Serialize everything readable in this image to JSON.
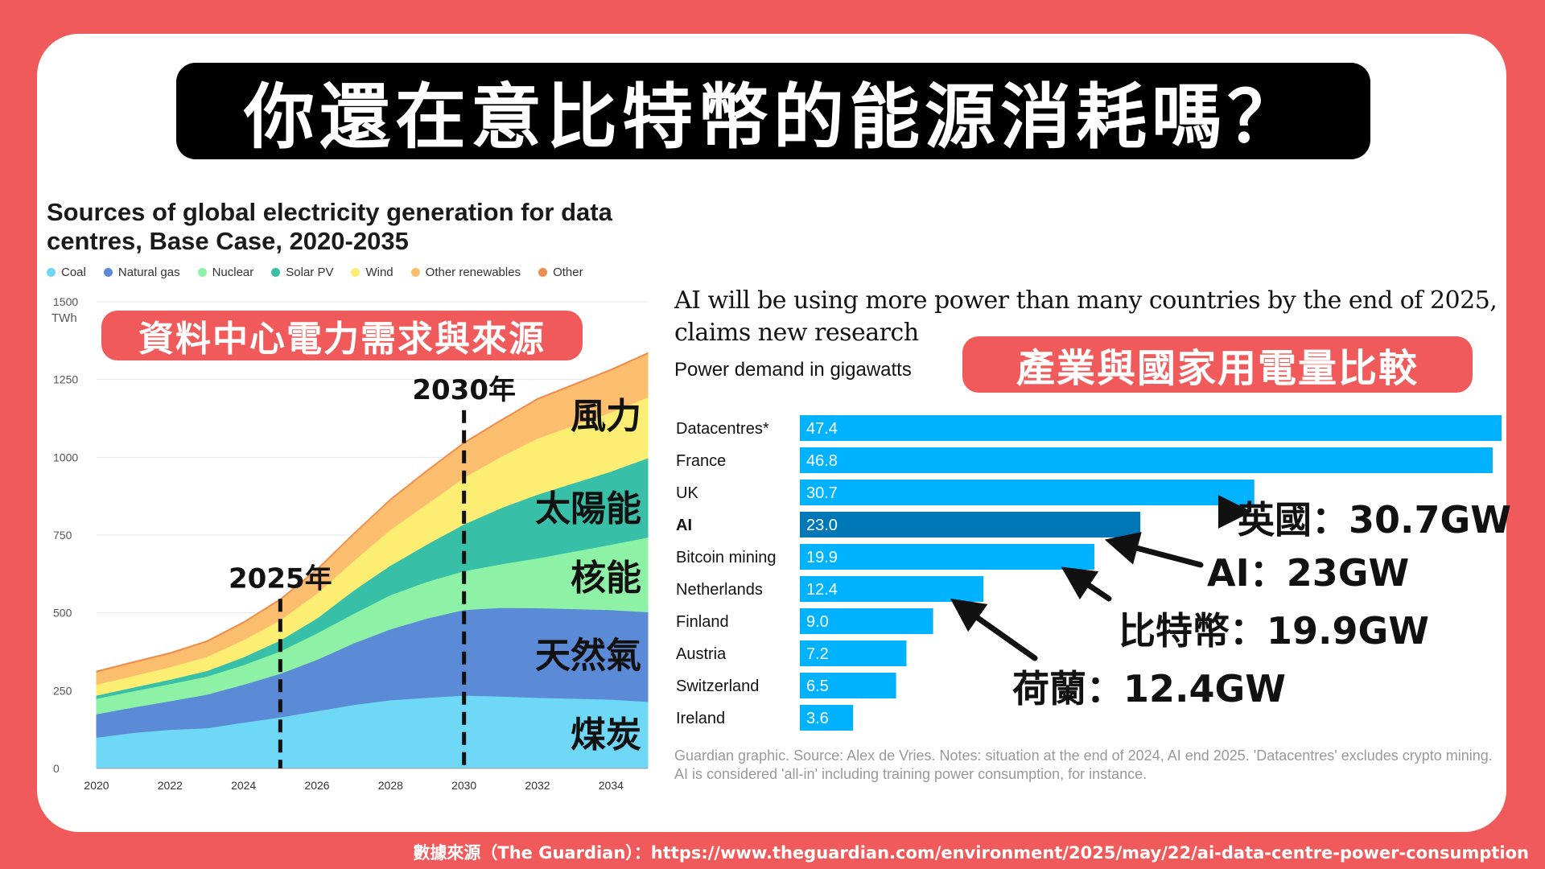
{
  "main_title": "你還在意比特幣的能源消耗嗎？",
  "footer_source": "數據來源（The Guardian）：https://www.theguardian.com/environment/2025/may/22/ai-data-centre-power-consumption",
  "left_pill": "資料中心電力需求與來源",
  "right_pill": "產業與國家用電量比較",
  "chart_data": [
    {
      "type": "area",
      "title": "Sources of global electricity generation for data centres, Base Case, 2020-2035",
      "ylabel": "TWh",
      "ylim": [
        0,
        1500
      ],
      "yticks": [
        "1500",
        "1250",
        "1000",
        "750",
        "500",
        "250",
        "0"
      ],
      "xticks": [
        "2020",
        "2022",
        "2024",
        "2026",
        "2028",
        "2030",
        "2032",
        "2034"
      ],
      "x": [
        2020,
        2021,
        2022,
        2023,
        2024,
        2025,
        2026,
        2027,
        2028,
        2029,
        2030,
        2031,
        2032,
        2033,
        2034,
        2035
      ],
      "series": [
        {
          "name": "Coal",
          "color": "#6fd8f7",
          "values": [
            100,
            115,
            125,
            130,
            148,
            165,
            185,
            205,
            220,
            228,
            235,
            232,
            228,
            225,
            222,
            215
          ]
        },
        {
          "name": "Natural gas",
          "color": "#5b8ad6",
          "values": [
            75,
            82,
            92,
            108,
            122,
            140,
            165,
            198,
            228,
            255,
            275,
            285,
            288,
            288,
            288,
            288
          ]
        },
        {
          "name": "Nuclear",
          "color": "#8ef2a6",
          "values": [
            50,
            52,
            55,
            58,
            63,
            72,
            85,
            95,
            110,
            118,
            125,
            140,
            160,
            185,
            210,
            240
          ]
        },
        {
          "name": "Solar PV",
          "color": "#38bfa7",
          "values": [
            10,
            12,
            14,
            18,
            25,
            35,
            48,
            75,
            95,
            120,
            150,
            180,
            205,
            220,
            235,
            255
          ]
        },
        {
          "name": "Wind",
          "color": "#fbee73",
          "values": [
            35,
            37,
            40,
            45,
            55,
            65,
            80,
            95,
            115,
            130,
            150,
            165,
            180,
            185,
            190,
            195
          ]
        },
        {
          "name": "Other renewables",
          "color": "#fbbe6e",
          "values": [
            40,
            42,
            43,
            48,
            55,
            65,
            75,
            85,
            95,
            105,
            110,
            115,
            125,
            130,
            135,
            140
          ]
        },
        {
          "name": "Other",
          "color": "#f08c4c",
          "values": [
            3,
            3,
            3,
            3,
            3,
            3,
            3,
            3,
            3,
            3,
            3,
            3,
            3,
            3,
            3,
            3
          ]
        }
      ],
      "markers": [
        {
          "year": 2025,
          "label": "2025年"
        },
        {
          "year": 2030,
          "label": "2030年"
        }
      ],
      "area_labels": [
        {
          "text": "風力",
          "series": "Wind"
        },
        {
          "text": "太陽能",
          "series": "Solar PV"
        },
        {
          "text": "核能",
          "series": "Nuclear"
        },
        {
          "text": "天然氣",
          "series": "Natural gas"
        },
        {
          "text": "煤炭",
          "series": "Coal"
        }
      ]
    },
    {
      "type": "bar",
      "orientation": "horizontal",
      "title": "AI will be using more power than many countries by the end of 2025, claims new research",
      "subtitle": "Power demand in gigawatts",
      "categories": [
        "Datacentres*",
        "France",
        "UK",
        "AI",
        "Bitcoin mining",
        "Netherlands",
        "Finland",
        "Austria",
        "Switzerland",
        "Ireland"
      ],
      "values": [
        47.4,
        46.8,
        30.7,
        23.0,
        19.9,
        12.4,
        9.0,
        7.2,
        6.5,
        3.6
      ],
      "value_labels": [
        "47.4",
        "46.8",
        "30.7",
        "23.0",
        "19.9",
        "12.4",
        "9.0",
        "7.2",
        "6.5",
        "3.6"
      ],
      "highlight": "AI",
      "bar_color": "#00b2ff",
      "highlight_color": "#0078b8",
      "xlim": [
        0,
        47.4
      ],
      "note": "Guardian graphic. Source: Alex de Vries. Notes: situation at the end of 2024, AI end 2025. 'Datacentres' excludes crypto mining. AI is considered 'all-in' including training power consumption, for instance.",
      "annotations": [
        {
          "text": "英國：30.7GW",
          "target": "UK"
        },
        {
          "text": "AI：23GW",
          "target": "AI"
        },
        {
          "text": "比特幣：19.9GW",
          "target": "Bitcoin mining"
        },
        {
          "text": "荷蘭：12.4GW",
          "target": "Netherlands"
        }
      ]
    }
  ]
}
